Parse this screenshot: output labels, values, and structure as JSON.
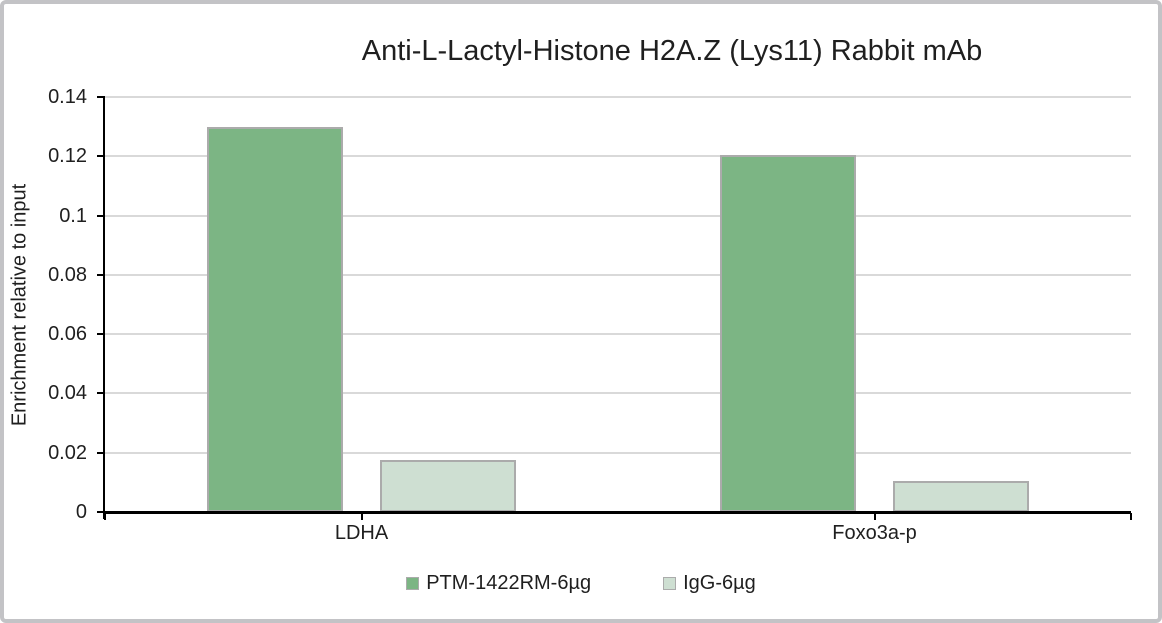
{
  "frame": {
    "background": "#ffffff",
    "border_color": "#c3c3c6"
  },
  "chart_data": {
    "type": "bar",
    "title": "Anti-L-Lactyl-Histone H2A.Z (Lys11) Rabbit mAb",
    "ylabel": "Enrichment relative to input",
    "xlabel": "",
    "categories": [
      "LDHA",
      "Foxo3a-p"
    ],
    "series": [
      {
        "name": "PTM-1422RM-6µg",
        "color": "#7CB584",
        "border_color": "#ABABAB",
        "values": [
          0.13,
          0.1205
        ]
      },
      {
        "name": "IgG-6µg",
        "color": "#CEDFD2",
        "border_color": "#ABABAB",
        "values": [
          0.0176,
          0.0103
        ]
      }
    ],
    "ylim": [
      0,
      0.14
    ],
    "ytick_labels": [
      "0",
      "0.02",
      "0.04",
      "0.06",
      "0.08",
      "0.1",
      "0.12",
      "0.14"
    ],
    "grid": true,
    "gridline_color": "#D9D9D9",
    "axis_color": "#000000",
    "text_color": "#1f1f1f",
    "legend_position": "bottom"
  }
}
